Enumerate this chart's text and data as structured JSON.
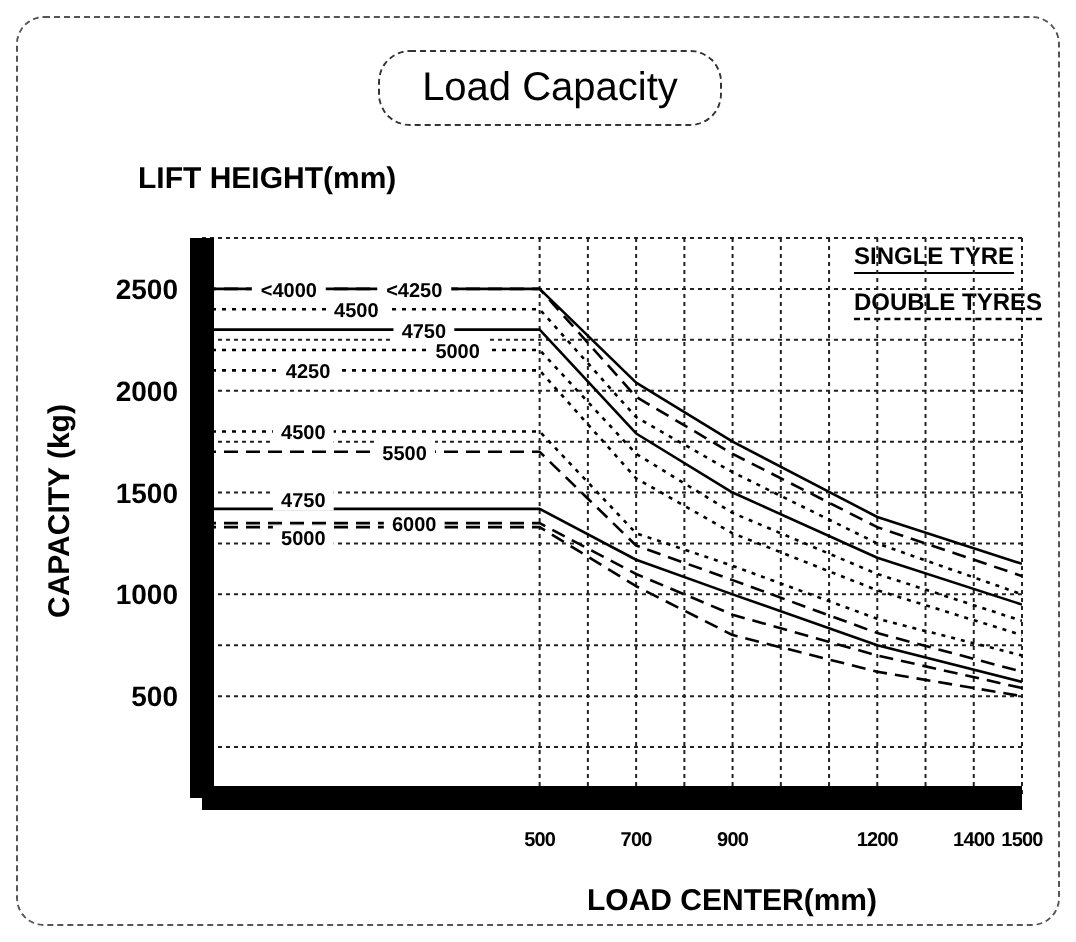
{
  "chart_data": {
    "type": "line",
    "title": "Load Capacity",
    "xlabel": "LOAD CENTER(mm)",
    "ylabel": "CAPACITY (kg)",
    "annotations": [
      "LIFT HEIGHT(mm)",
      "SINGLE TYRE",
      "DOUBLE TYRES",
      {
        "text": "<4000",
        "x": -20,
        "y": 2500
      },
      {
        "text": "<4250",
        "x": 240,
        "y": 2500
      },
      {
        "text": "4500",
        "x": 120,
        "y": 2400
      },
      {
        "text": "4750",
        "x": 260,
        "y": 2300
      },
      {
        "text": "5000",
        "x": 330,
        "y": 2200
      },
      {
        "text": "4250",
        "x": 20,
        "y": 2100
      },
      {
        "text": "4500",
        "x": 10,
        "y": 1800
      },
      {
        "text": "5500",
        "x": 220,
        "y": 1700
      },
      {
        "text": "4750",
        "x": 10,
        "y": 1470
      },
      {
        "text": "5000",
        "x": 10,
        "y": 1280
      },
      {
        "text": "6000",
        "x": 240,
        "y": 1350
      }
    ],
    "x": [
      -200,
      500,
      700,
      900,
      1200,
      1500
    ],
    "series": [
      {
        "color": "#000000",
        "line_style": "solid",
        "values": [
          2500,
          2500,
          2040,
          1750,
          1380,
          1150
        ]
      },
      {
        "color": "#000000",
        "line_style": "dashed",
        "values": [
          2500,
          2500,
          1970,
          1690,
          1330,
          1090
        ]
      },
      {
        "color": "#000000",
        "line_style": "dotted",
        "values": [
          2400,
          2400,
          1870,
          1600,
          1250,
          1000
        ]
      },
      {
        "color": "#000000",
        "line_style": "solid",
        "values": [
          2300,
          2300,
          1790,
          1500,
          1180,
          950
        ]
      },
      {
        "color": "#000000",
        "line_style": "dotted",
        "values": [
          2200,
          2200,
          1690,
          1400,
          1100,
          870
        ]
      },
      {
        "color": "#000000",
        "line_style": "dotted",
        "values": [
          2100,
          2100,
          1570,
          1300,
          1020,
          800
        ]
      },
      {
        "color": "#000000",
        "line_style": "dotted",
        "values": [
          1800,
          1800,
          1300,
          1140,
          880,
          700
        ]
      },
      {
        "color": "#000000",
        "line_style": "dashed",
        "values": [
          1700,
          1700,
          1240,
          1070,
          810,
          620
        ]
      },
      {
        "color": "#000000",
        "line_style": "solid",
        "values": [
          1420,
          1420,
          1170,
          1000,
          750,
          570
        ]
      },
      {
        "color": "#000000",
        "line_style": "dashed",
        "values": [
          1350,
          1350,
          1100,
          900,
          700,
          540
        ]
      },
      {
        "color": "#000000",
        "line_style": "dashed",
        "values": [
          1330,
          1330,
          1040,
          800,
          620,
          500
        ]
      }
    ],
    "xlim": [
      -200,
      1500
    ],
    "xticks": [
      500,
      {
        "value": 600,
        "label": null
      },
      700,
      {
        "value": 800,
        "label": null
      },
      900,
      {
        "value": 1000,
        "label": null
      },
      {
        "value": 1100,
        "label": null
      },
      1200,
      {
        "value": 1300,
        "label": null
      },
      1400,
      1500
    ],
    "ylim": [
      0,
      2750
    ],
    "yticks": [
      {
        "value": 250,
        "label": null
      },
      500,
      {
        "value": 750,
        "label": null
      },
      1000,
      {
        "value": 1250,
        "label": null
      },
      1500,
      {
        "value": 1750,
        "label": null
      },
      2000,
      {
        "value": 2250,
        "label": null
      },
      2500
    ],
    "grid": true,
    "marker": "none"
  }
}
